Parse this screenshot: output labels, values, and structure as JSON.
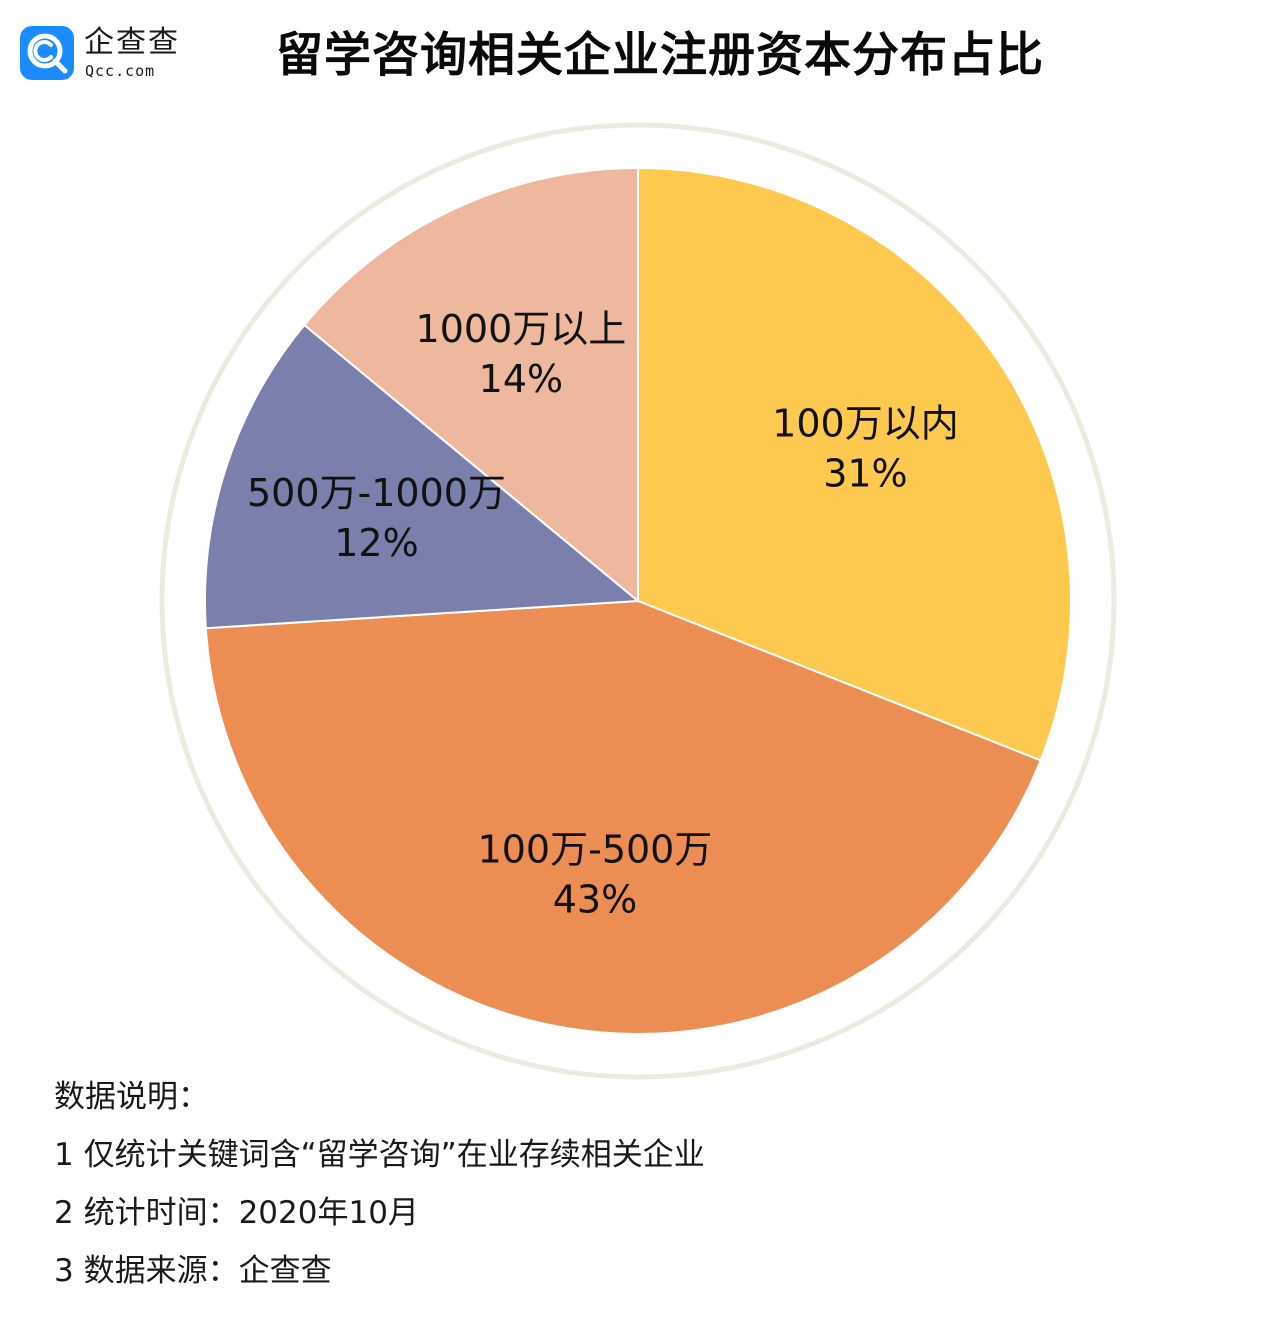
{
  "logo": {
    "name_cn": "企查查",
    "name_en": "Qcc.com",
    "icon": "qcc-logo-icon",
    "color": "#1a8cff"
  },
  "title": "留学咨询相关企业注册资本分布占比",
  "chart_data": {
    "type": "pie",
    "title": "留学咨询相关企业注册资本分布占比",
    "start_angle_deg": 0,
    "direction": "clockwise",
    "slices": [
      {
        "label": "100万以内",
        "value": 31,
        "display": "31%",
        "color": "#fdca4f"
      },
      {
        "label": "100万-500万",
        "value": 43,
        "display": "43%",
        "color": "#ec8d54"
      },
      {
        "label": "500万-1000万",
        "value": 12,
        "display": "12%",
        "color": "#7a80ab"
      },
      {
        "label": "1000万以上",
        "value": 14,
        "display": "14%",
        "color": "#edb89e"
      }
    ],
    "ring_color": "#ecebdf"
  },
  "notes": {
    "heading": "数据说明：",
    "items": [
      "1 仅统计关键词含“留学咨询”在业存续相关企业",
      "2 统计时间：2020年10月",
      "3 数据来源：企查查"
    ]
  }
}
